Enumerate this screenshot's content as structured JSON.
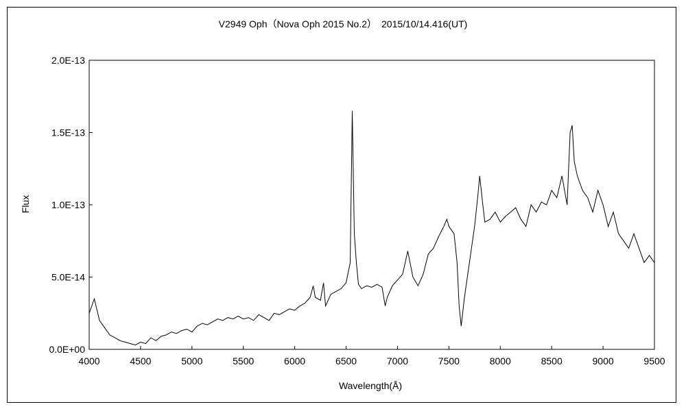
{
  "chart_data": {
    "type": "line",
    "title": "V2949 Oph（Nova Oph 2015 No.2）　2015/10/14.416(UT)",
    "xlabel": "Wavelength(Å)",
    "ylabel": "Flux",
    "xlim": [
      4000,
      9500
    ],
    "ylim": [
      0,
      2e-13
    ],
    "x_ticks": [
      4000,
      4500,
      5000,
      5500,
      6000,
      6500,
      7000,
      7500,
      8000,
      8500,
      9000,
      9500
    ],
    "x_tick_labels": [
      "4000",
      "4500",
      "5000",
      "5500",
      "6000",
      "6500",
      "7000",
      "7500",
      "8000",
      "8500",
      "9000",
      "9500"
    ],
    "y_ticks": [
      0,
      5e-14,
      1e-13,
      1.5e-13,
      2e-13
    ],
    "y_tick_labels": [
      "0.0E+00",
      "5.0E-14",
      "1.0E-13",
      "1.5E-13",
      "2.0E-13"
    ],
    "grid": false,
    "legend": "none",
    "line_color": "#000000",
    "series": [
      {
        "x": [
          4000,
          4050,
          4100,
          4150,
          4200,
          4250,
          4300,
          4350,
          4400,
          4450,
          4500,
          4550,
          4600,
          4650,
          4700,
          4750,
          4800,
          4850,
          4900,
          4950,
          5000,
          5050,
          5100,
          5150,
          5200,
          5250,
          5300,
          5350,
          5400,
          5450,
          5500,
          5550,
          5600,
          5650,
          5700,
          5750,
          5800,
          5850,
          5900,
          5950,
          6000,
          6050,
          6100,
          6150,
          6180,
          6200,
          6250,
          6280,
          6300,
          6350,
          6400,
          6450,
          6500,
          6540,
          6560,
          6580,
          6600,
          6620,
          6650,
          6700,
          6750,
          6800,
          6850,
          6880,
          6900,
          6950,
          7000,
          7050,
          7100,
          7150,
          7200,
          7250,
          7300,
          7350,
          7400,
          7450,
          7480,
          7500,
          7550,
          7580,
          7600,
          7620,
          7650,
          7700,
          7750,
          7780,
          7800,
          7830,
          7850,
          7900,
          7950,
          8000,
          8050,
          8100,
          8150,
          8200,
          8250,
          8300,
          8350,
          8400,
          8450,
          8500,
          8550,
          8600,
          8650,
          8680,
          8700,
          8720,
          8750,
          8800,
          8850,
          8900,
          8950,
          9000,
          9050,
          9100,
          9150,
          9200,
          9250,
          9300,
          9350,
          9400,
          9450,
          9500
        ],
        "y": [
          2.5e-14,
          3.5e-14,
          2e-14,
          1.5e-14,
          1e-14,
          8e-15,
          6e-15,
          5e-15,
          4e-15,
          3e-15,
          5e-15,
          4e-15,
          8e-15,
          6e-15,
          9e-15,
          1e-14,
          1.2e-14,
          1.1e-14,
          1.3e-14,
          1.4e-14,
          1.2e-14,
          1.6e-14,
          1.8e-14,
          1.7e-14,
          1.9e-14,
          2.1e-14,
          2e-14,
          2.2e-14,
          2.1e-14,
          2.3e-14,
          2.1e-14,
          2.2e-14,
          2e-14,
          2.4e-14,
          2.2e-14,
          2e-14,
          2.5e-14,
          2.4e-14,
          2.6e-14,
          2.8e-14,
          2.7e-14,
          3e-14,
          3.2e-14,
          3.6e-14,
          4.4e-14,
          3.6e-14,
          3.4e-14,
          4.6e-14,
          3e-14,
          3.8e-14,
          4e-14,
          4.2e-14,
          4.6e-14,
          6e-14,
          1.65e-13,
          8e-14,
          6e-14,
          4.5e-14,
          4.2e-14,
          4.4e-14,
          4.3e-14,
          4.5e-14,
          4.3e-14,
          3e-14,
          3.6e-14,
          4.4e-14,
          4.8e-14,
          5.2e-14,
          6.8e-14,
          5e-14,
          4.4e-14,
          5.2e-14,
          6.6e-14,
          7e-14,
          7.8e-14,
          8.5e-14,
          9e-14,
          8.5e-14,
          8e-14,
          6e-14,
          3e-14,
          1.6e-14,
          3.5e-14,
          6e-14,
          8.5e-14,
          1.05e-13,
          1.2e-13,
          1e-13,
          8.8e-14,
          9e-14,
          9.5e-14,
          8.8e-14,
          9.2e-14,
          9.5e-14,
          9.8e-14,
          9e-14,
          8.5e-14,
          1e-13,
          9.5e-14,
          1.02e-13,
          1e-13,
          1.1e-13,
          1.05e-13,
          1.2e-13,
          1e-13,
          1.5e-13,
          1.55e-13,
          1.3e-13,
          1.2e-13,
          1.1e-13,
          1.05e-13,
          9.5e-14,
          1.1e-13,
          1e-13,
          8.5e-14,
          9.5e-14,
          8e-14,
          7.5e-14,
          7e-14,
          8e-14,
          7e-14,
          6e-14,
          6.5e-14,
          6e-14
        ]
      }
    ]
  }
}
